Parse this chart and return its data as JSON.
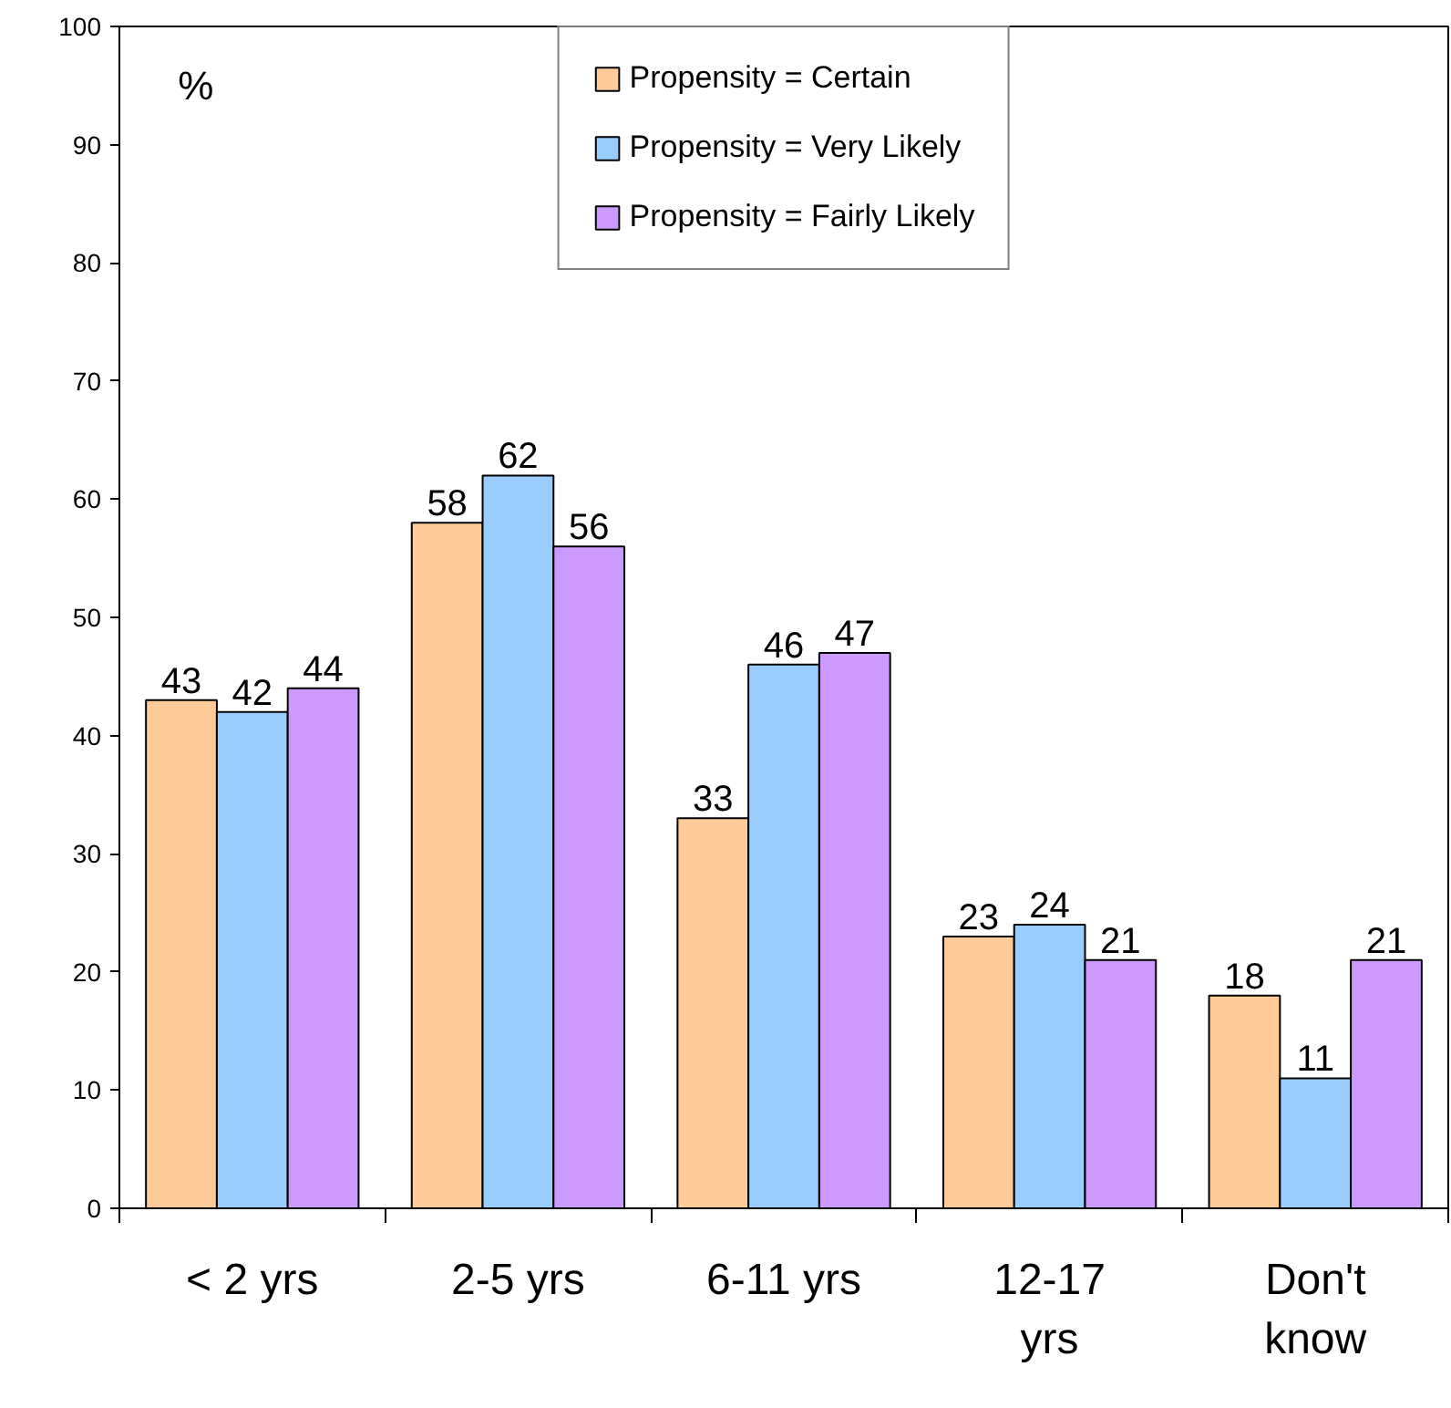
{
  "chart_data": {
    "type": "bar",
    "categories": [
      "< 2 yrs",
      "2-5 yrs",
      "6-11 yrs",
      "12-17 yrs",
      "Don't know"
    ],
    "series": [
      {
        "name": "Propensity = Certain",
        "color": "#ffcc99",
        "values": [
          43,
          58,
          33,
          23,
          18
        ]
      },
      {
        "name": "Propensity = Very Likely",
        "color": "#99ccff",
        "values": [
          42,
          62,
          46,
          24,
          11
        ]
      },
      {
        "name": "Propensity = Fairly Likely",
        "color": "#cc99ff",
        "values": [
          44,
          56,
          47,
          21,
          21
        ]
      }
    ],
    "ylim": [
      0,
      100
    ],
    "yticks": [
      0,
      10,
      20,
      30,
      40,
      50,
      60,
      70,
      80,
      90,
      100
    ],
    "annotations": [
      "%"
    ],
    "data_labels": true,
    "grid": false,
    "legend": "top"
  }
}
